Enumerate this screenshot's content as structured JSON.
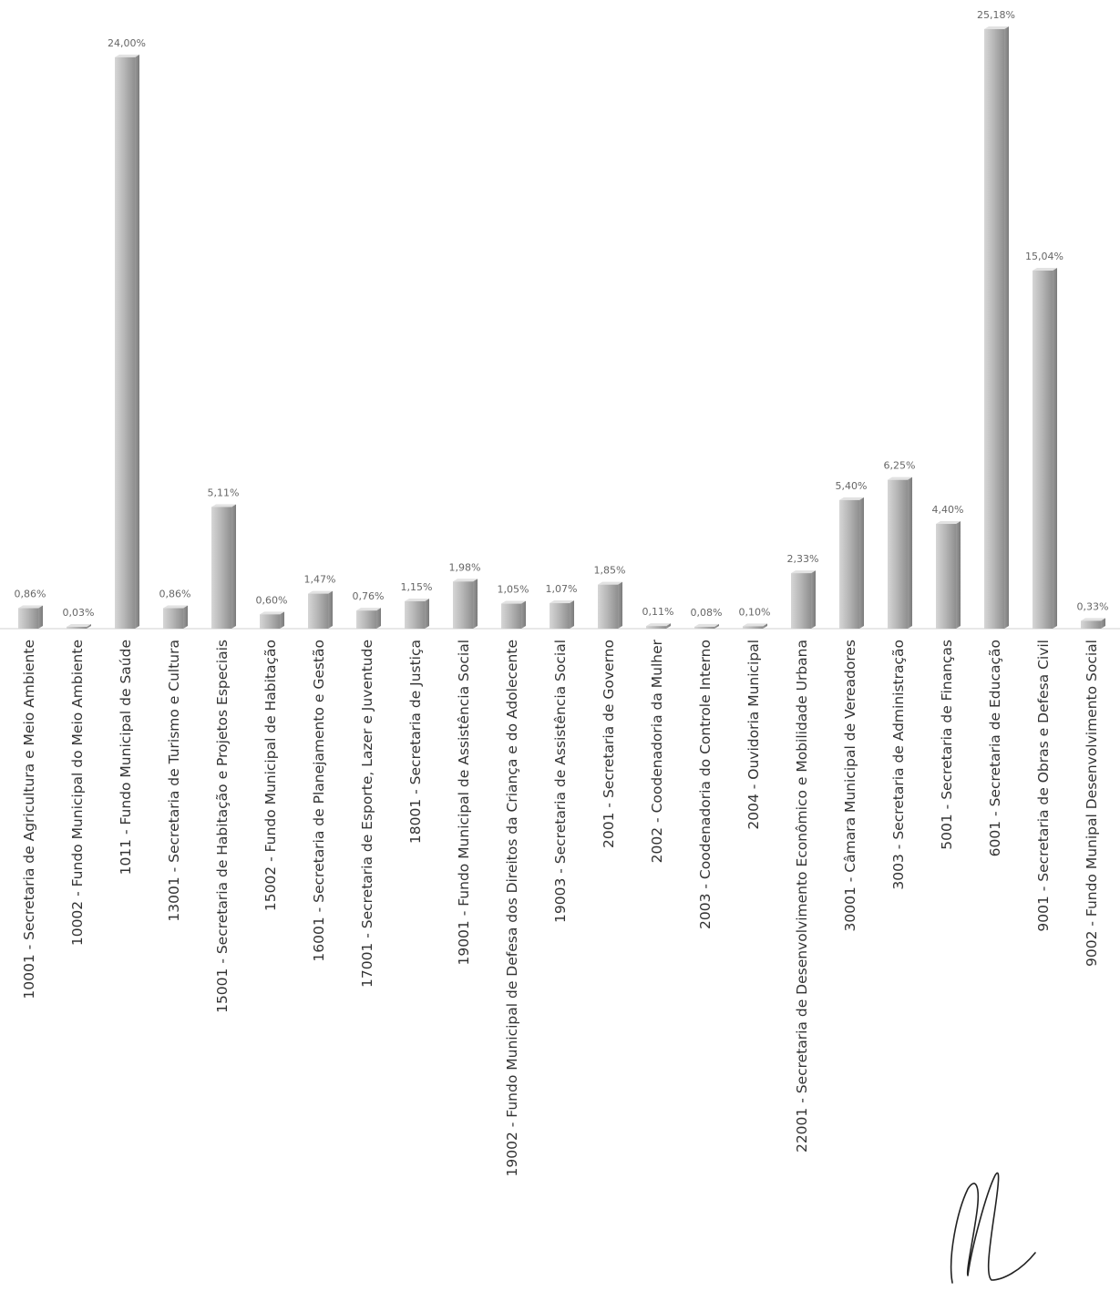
{
  "chart_data": {
    "type": "bar",
    "title": "",
    "xlabel": "",
    "ylabel": "",
    "ylim": [
      0,
      25.18
    ],
    "grid": false,
    "legend": "none",
    "orientation": "vertical-bars-rotated-labels",
    "bar_color": "#bdbdbd",
    "bar_color_dark": "#8f8f8f",
    "categories": [
      "10001 - Secretaria de Agricultura e Meio Ambiente",
      "10002 - Fundo Municipal do Meio Ambiente",
      "1011 - Fundo Municipal de Saúde",
      "13001 - Secretaria de Turismo e Cultura",
      "15001 - Secretaria de Habitação e Projetos Especiais",
      "15002 - Fundo Municipal de Habitação",
      "16001 - Secretaria de Planejamento  e Gestão",
      "17001 - Secretaria de Esporte, Lazer e Juventude",
      "18001 - Secretaria de Justiça",
      "19001 - Fundo Municipal de Assistência Social",
      "19002 - Fundo Municipal de Defesa dos Direitos da Criança e do Adolecente",
      "19003 - Secretaria de Assistência Social",
      "2001 - Secretaria de Governo",
      "2002 - Coodenadoria da Mulher",
      "2003 - Coodenadoria do Controle Interno",
      "2004 - Ouvidoria Municipal",
      "22001 - Secretaria de Desenvolvimento Econômico e Mobilidade Urbana",
      "30001 - Câmara Municipal de Vereadores",
      "3003 - Secretaria de Administração",
      "5001 - Secretaria de Finanças",
      "6001 - Secretaria de Educação",
      "9001 - Secretaria de Obras e Defesa Civil",
      "9002 - Fundo Munipal Desenvolvimento Social"
    ],
    "values": [
      0.86,
      0.03,
      24.0,
      0.86,
      5.11,
      0.6,
      1.47,
      0.76,
      1.15,
      1.98,
      1.05,
      1.07,
      1.85,
      0.11,
      0.08,
      0.1,
      2.33,
      5.4,
      6.25,
      4.4,
      25.18,
      15.04,
      0.33
    ],
    "value_labels": [
      "0,86%",
      "0,03%",
      "24,00%",
      "0,86%",
      "5,11%",
      "0,60%",
      "1,47%",
      "0,76%",
      "1,15%",
      "1,98%",
      "1,05%",
      "1,07%",
      "1,85%",
      "0,11%",
      "0,08%",
      "0,10%",
      "2,33%",
      "5,40%",
      "6,25%",
      "4,40%",
      "25,18%",
      "15,04%",
      "0,33%"
    ]
  }
}
